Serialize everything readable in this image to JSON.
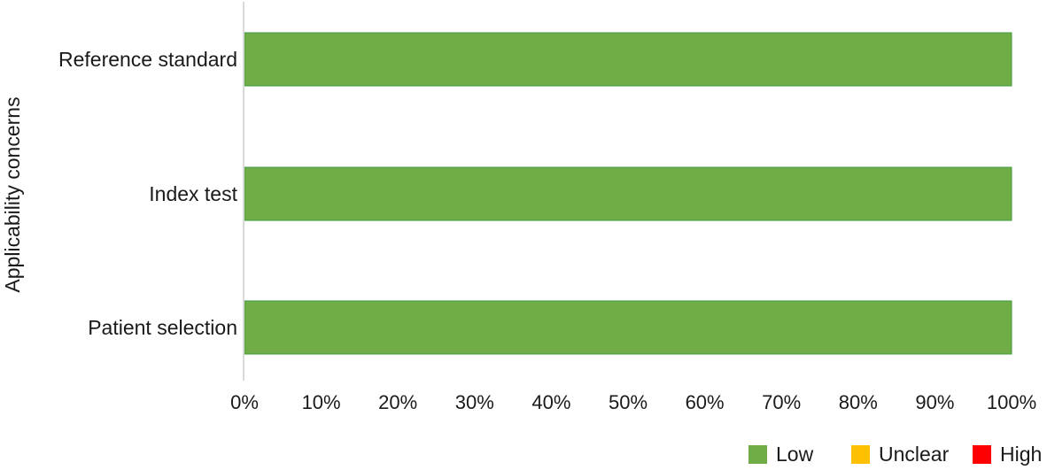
{
  "chart_data": {
    "type": "bar",
    "orientation": "horizontal",
    "stacked": true,
    "ylabel": "Applicability concerns",
    "categories": [
      "Reference standard",
      "Index test",
      "Patient selection"
    ],
    "series": [
      {
        "name": "Low",
        "color": "#70ad47",
        "values": [
          100,
          100,
          100
        ]
      },
      {
        "name": "Unclear",
        "color": "#ffc000",
        "values": [
          0,
          0,
          0
        ]
      },
      {
        "name": "High",
        "color": "#ff0000",
        "values": [
          0,
          0,
          0
        ]
      }
    ],
    "xlim": [
      0,
      100
    ],
    "xticks": [
      "0%",
      "10%",
      "20%",
      "30%",
      "40%",
      "50%",
      "60%",
      "70%",
      "80%",
      "90%",
      "100%"
    ],
    "grid": false,
    "legend_position": "bottom-right"
  }
}
